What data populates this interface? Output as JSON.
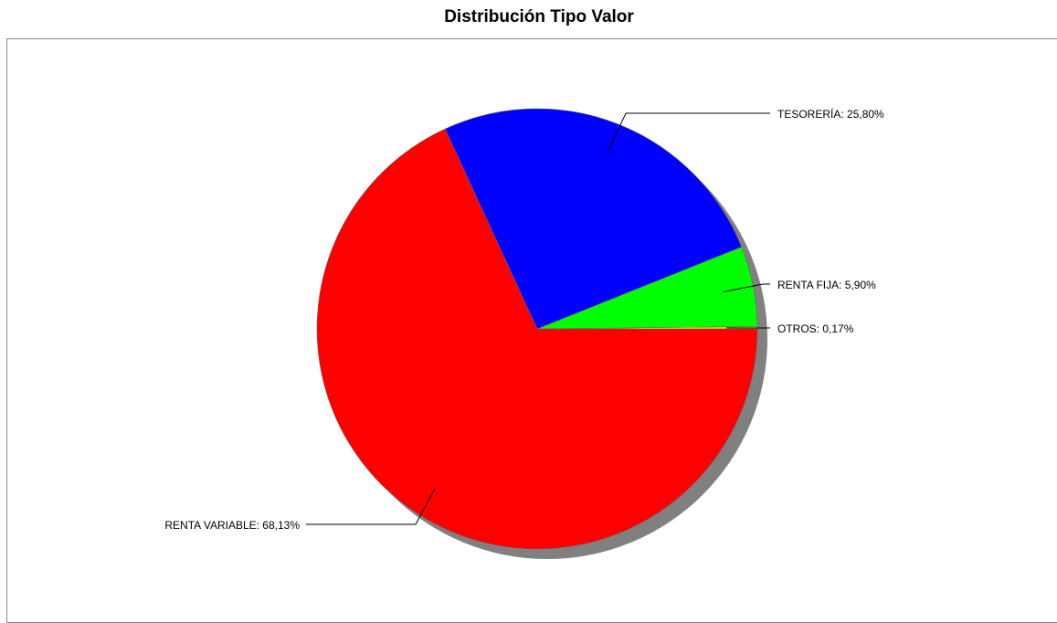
{
  "chart_data": {
    "type": "pie",
    "title": "Distribución Tipo Valor",
    "slices": [
      {
        "label": "RENTA VARIABLE",
        "value": 68.13,
        "display": "RENTA VARIABLE: 68,13%",
        "color": "#ff0000"
      },
      {
        "label": "TESORERÍA",
        "value": 25.8,
        "display": "TESORERÍA: 25,80%",
        "color": "#0000ff"
      },
      {
        "label": "RENTA FIJA",
        "value": 5.9,
        "display": "RENTA FIJA: 5,90%",
        "color": "#00ff00"
      },
      {
        "label": "OTROS",
        "value": 0.17,
        "display": "OTROS: 0,17%",
        "color": "#ffff00"
      }
    ],
    "legend": "none",
    "shadow": true
  }
}
